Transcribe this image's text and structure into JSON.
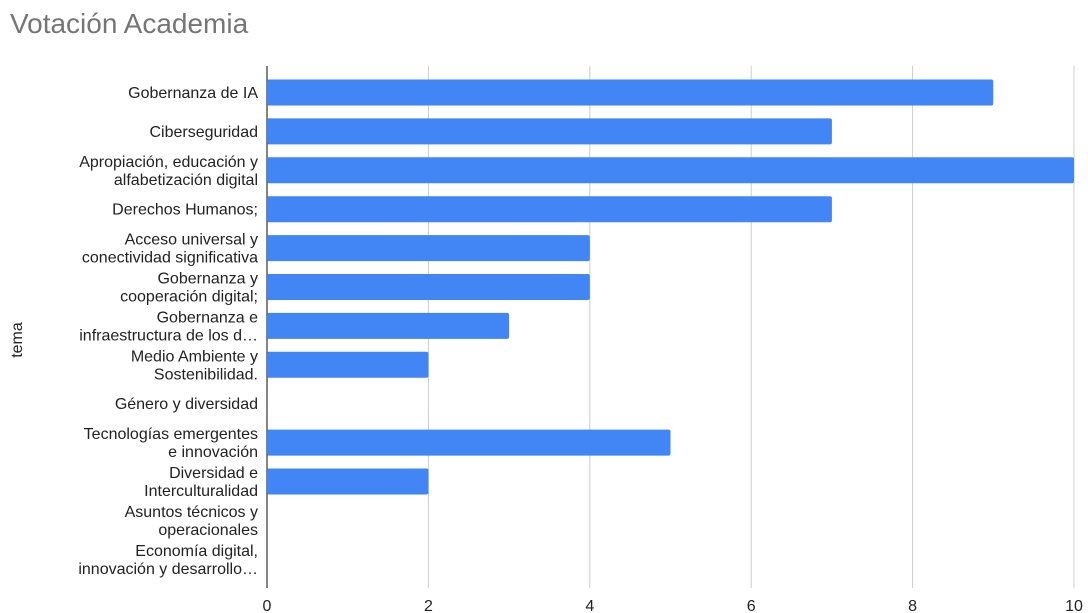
{
  "chart_data": {
    "type": "bar",
    "orientation": "horizontal",
    "title": "Votación Academia",
    "ylabel": "tema",
    "xlabel": "",
    "xlim": [
      0,
      10
    ],
    "x_ticks": [
      0,
      2,
      4,
      6,
      8,
      10
    ],
    "grid": true,
    "legend": "none",
    "bar_color": "#4285f4",
    "categories": [
      "Gobernanza de IA",
      "Ciberseguridad",
      "Apropiación, educación y alfabetización digital",
      "Derechos Humanos;",
      "Acceso universal y conectividad significativa",
      "Gobernanza y cooperación digital;",
      "Gobernanza e infraestructura de los d…",
      "Medio Ambiente y Sostenibilidad.",
      "Género y diversidad",
      "Tecnologías emergentes e innovación",
      "Diversidad e Interculturalidad",
      "Asuntos técnicos y operacionales",
      "Economía digital, innovación y desarrollo…"
    ],
    "category_lines": [
      [
        "Gobernanza de IA"
      ],
      [
        "Ciberseguridad"
      ],
      [
        "Apropiación, educación y",
        "alfabetización digital"
      ],
      [
        "Derechos Humanos;"
      ],
      [
        "Acceso universal y",
        "conectividad significativa"
      ],
      [
        "Gobernanza y",
        "cooperación digital;"
      ],
      [
        "Gobernanza e",
        "infraestructura de los d…"
      ],
      [
        "Medio Ambiente y",
        "Sostenibilidad."
      ],
      [
        "Género y diversidad"
      ],
      [
        "Tecnologías emergentes",
        "e innovación"
      ],
      [
        "Diversidad e",
        "Interculturalidad"
      ],
      [
        "Asuntos técnicos y",
        "operacionales"
      ],
      [
        "Economía digital,",
        "innovación y desarrollo…"
      ]
    ],
    "values": [
      9,
      7,
      10,
      7,
      4,
      4,
      3,
      2,
      0,
      5,
      2,
      0,
      0
    ]
  }
}
